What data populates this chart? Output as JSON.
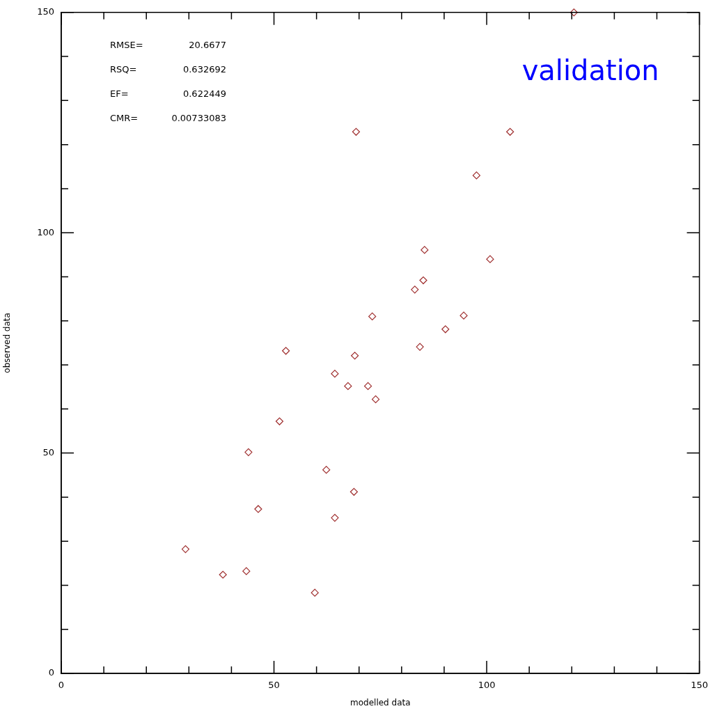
{
  "chart_data": {
    "type": "scatter",
    "title": "validation",
    "xlabel": "modelled data",
    "ylabel": "observed data",
    "annotations": [
      "RMSE=   20.6677",
      "RSQ=    0.632692",
      "EF=      0.622449",
      "CMR= 0.00733083"
    ],
    "series": [
      {
        "color": "#a03030",
        "x": [
          29.2,
          38.0,
          43.5,
          59.6,
          44.0,
          46.3,
          51.3,
          52.8,
          62.3,
          64.3,
          64.3,
          68.8,
          67.4,
          69.0,
          72.1,
          73.9,
          73.1,
          69.3,
          83.1,
          85.1,
          85.4,
          84.3,
          90.3,
          94.6,
          97.6,
          100.8,
          105.5,
          120.5
        ],
        "values": [
          28.2,
          22.4,
          23.2,
          18.3,
          50.2,
          37.3,
          57.2,
          73.2,
          46.2,
          68.0,
          35.3,
          41.2,
          65.2,
          72.1,
          65.2,
          62.2,
          81.0,
          122.9,
          87.1,
          89.2,
          96.1,
          74.1,
          78.1,
          81.2,
          113.0,
          94.0,
          122.9,
          150
        ]
      }
    ],
    "marker": "diamond",
    "grid": false,
    "legend": false,
    "xlim": [
      0,
      150
    ],
    "ylim": [
      0,
      150
    ],
    "xticks": [
      0,
      {
        "value": 10,
        "label": null
      },
      {
        "value": 20,
        "label": null
      },
      {
        "value": 30,
        "label": null
      },
      {
        "value": 40,
        "label": null
      },
      50,
      {
        "value": 60,
        "label": null
      },
      {
        "value": 70,
        "label": null
      },
      {
        "value": 80,
        "label": null
      },
      {
        "value": 90,
        "label": null
      },
      100,
      {
        "value": 110,
        "label": null
      },
      {
        "value": 120,
        "label": null
      },
      {
        "value": 130,
        "label": null
      },
      {
        "value": 140,
        "label": null
      },
      150
    ],
    "yticks": [
      0,
      {
        "value": 10,
        "label": null
      },
      {
        "value": 20,
        "label": null
      },
      {
        "value": 30,
        "label": null
      },
      {
        "value": 40,
        "label": null
      },
      50,
      {
        "value": 60,
        "label": null
      },
      {
        "value": 70,
        "label": null
      },
      {
        "value": 80,
        "label": null
      },
      {
        "value": 90,
        "label": null
      },
      100,
      {
        "value": 110,
        "label": null
      },
      {
        "value": 120,
        "label": null
      },
      {
        "value": 130,
        "label": null
      },
      {
        "value": 140,
        "label": null
      },
      150
    ]
  }
}
